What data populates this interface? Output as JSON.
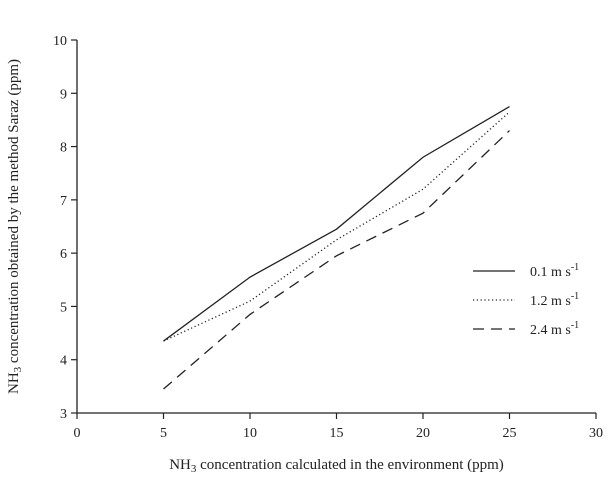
{
  "chart_data": {
    "type": "line",
    "title": "",
    "xlabel": {
      "prefix": "NH",
      "sub": "3",
      "suffix": " concentration calculated in the environment (ppm)"
    },
    "ylabel": {
      "prefix": "NH",
      "sub": "3",
      "suffix": " concentration obtained by the method Saraz (ppm)"
    },
    "xlim": [
      0,
      30
    ],
    "ylim": [
      3,
      10
    ],
    "xticks": [
      0,
      5,
      10,
      15,
      20,
      25,
      30
    ],
    "yticks": [
      3,
      4,
      5,
      6,
      7,
      8,
      9,
      10
    ],
    "grid": false,
    "legend_position": "right",
    "x": [
      5,
      10,
      15,
      20,
      25
    ],
    "series": [
      {
        "name": "0.1 m s",
        "sup": "-1",
        "dash": "solid",
        "values": [
          4.35,
          5.55,
          6.45,
          7.8,
          8.75
        ]
      },
      {
        "name": "1.2 m s",
        "sup": "-1",
        "dash": "dotted",
        "values": [
          4.35,
          5.1,
          6.25,
          7.2,
          8.65
        ]
      },
      {
        "name": "2.4 m s",
        "sup": "-1",
        "dash": "dashed",
        "values": [
          3.45,
          4.85,
          5.95,
          6.75,
          8.3
        ]
      }
    ]
  }
}
